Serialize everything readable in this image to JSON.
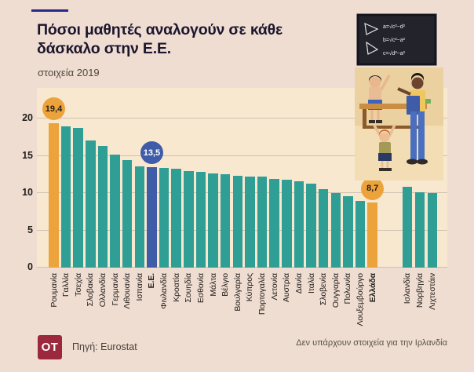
{
  "header": {
    "title_line1": "Πόσοι μαθητές αναλογούν σε κάθε",
    "title_line2": "δάσκαλο στην Ε.Ε.",
    "subtitle": "στοιχεία 2019"
  },
  "chart_data": {
    "type": "bar",
    "title": "Πόσοι μαθητές αναλογούν σε κάθε δάσκαλο στην Ε.Ε.",
    "subtitle": "στοιχεία 2019",
    "ylim": [
      0,
      20
    ],
    "yticks": [
      0,
      5,
      10,
      15,
      20
    ],
    "grid": true,
    "legend": "none",
    "colors": {
      "default": "#2F9E95",
      "orange": "#EDA33C",
      "blue": "#3E5CA8"
    },
    "bars": [
      {
        "label": "Ρουμανία",
        "value": 19.4,
        "color": "orange"
      },
      {
        "label": "Γαλλία",
        "value": 18.9
      },
      {
        "label": "Τσεχία",
        "value": 18.7
      },
      {
        "label": "Σλοβακία",
        "value": 17.1
      },
      {
        "label": "Ολλανδία",
        "value": 16.3
      },
      {
        "label": "Γερμανία",
        "value": 15.2
      },
      {
        "label": "Λιθουανία",
        "value": 14.4
      },
      {
        "label": "Ισπανία",
        "value": 13.6
      },
      {
        "label": "Ε.Ε.",
        "value": 13.5,
        "color": "blue",
        "bold": true
      },
      {
        "label": "Φινλανδία",
        "value": 13.4
      },
      {
        "label": "Κροατία",
        "value": 13.3
      },
      {
        "label": "Σουηδία",
        "value": 13.0
      },
      {
        "label": "Εσθονία",
        "value": 12.8
      },
      {
        "label": "Μάλτα",
        "value": 12.6
      },
      {
        "label": "Βέλγιο",
        "value": 12.5
      },
      {
        "label": "Βουλγαρία",
        "value": 12.3
      },
      {
        "label": "Κύπρος",
        "value": 12.2
      },
      {
        "label": "Πορτογαλία",
        "value": 12.2
      },
      {
        "label": "Λετονία",
        "value": 11.9
      },
      {
        "label": "Αυστρία",
        "value": 11.8
      },
      {
        "label": "Δανία",
        "value": 11.6
      },
      {
        "label": "Ιταλία",
        "value": 11.3
      },
      {
        "label": "Σλοβενία",
        "value": 10.5
      },
      {
        "label": "Ουγγαρία",
        "value": 10.0
      },
      {
        "label": "Πολωνία",
        "value": 9.6
      },
      {
        "label": "Λουξεμβούργο",
        "value": 9.0
      },
      {
        "label": "Ελλάδα",
        "value": 8.7,
        "color": "orange",
        "bold": true
      }
    ],
    "extra_bars": [
      {
        "label": "Ισλανδία",
        "value": 10.8
      },
      {
        "label": "Νορβηγία",
        "value": 10.1
      },
      {
        "label": "Λιχτεστάιν",
        "value": 10.0
      }
    ],
    "annotations": [
      {
        "bar": "Ρουμανία",
        "text": "19,4",
        "style": "orange"
      },
      {
        "bar": "Ε.Ε.",
        "text": "13,5",
        "style": "blue"
      },
      {
        "bar": "Ελλάδα",
        "text": "8,7",
        "style": "orange"
      }
    ]
  },
  "illustration": {
    "formulas": [
      "a=√c²−d²",
      "b=√c²−a²",
      "c=√d²−a²"
    ]
  },
  "footer": {
    "logo": "OT",
    "source": "Πηγή: Eurostat",
    "note": "Δεν υπάρχουν στοιχεία για την Ιρλανδία"
  }
}
